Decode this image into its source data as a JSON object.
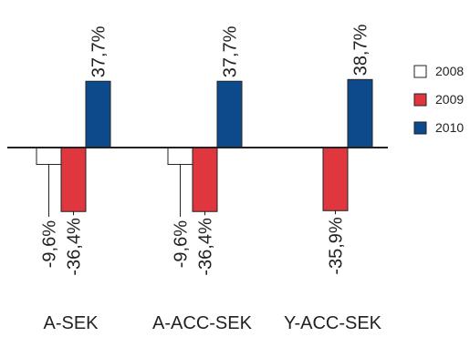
{
  "chart_data": {
    "type": "bar",
    "categories": [
      "A-SEK",
      "A-ACC-SEK",
      "Y-ACC-SEK"
    ],
    "series": [
      {
        "name": "2008",
        "color": "#ffffff",
        "values": [
          -9.6,
          -9.6,
          null
        ],
        "labels": [
          "-9,6%",
          "-9,6%",
          ""
        ]
      },
      {
        "name": "2009",
        "color": "#e0373f",
        "values": [
          -36.4,
          -36.4,
          -35.9
        ],
        "labels": [
          "-36,4%",
          "-36,4%",
          "-35,9%"
        ]
      },
      {
        "name": "2010",
        "color": "#0d4a8c",
        "values": [
          37.7,
          37.7,
          38.7
        ],
        "labels": [
          "37,7%",
          "37,7%",
          "38,7%"
        ]
      }
    ],
    "title": "",
    "xlabel": "",
    "ylabel": "",
    "ylim": [
      -45,
      45
    ],
    "grid": false,
    "legend_position": "right"
  }
}
